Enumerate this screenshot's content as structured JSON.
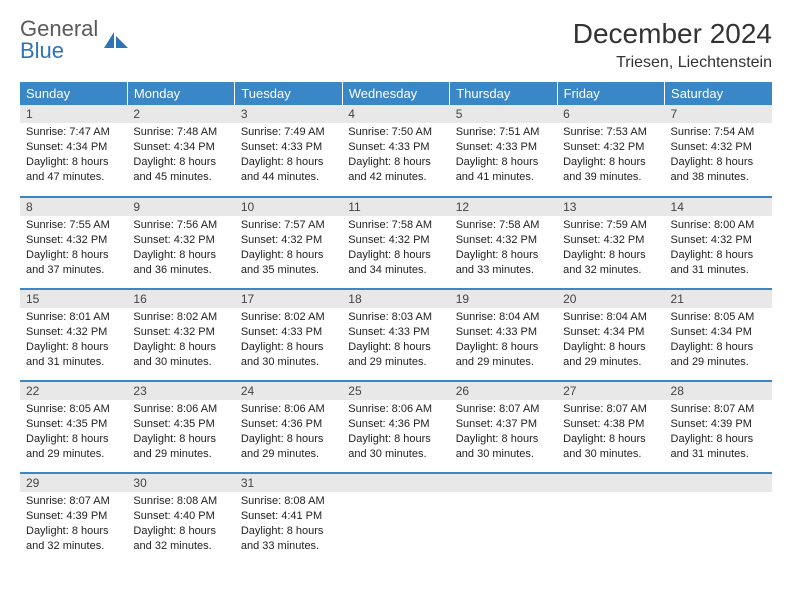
{
  "brand": {
    "part1": "General",
    "part2": "Blue"
  },
  "title": "December 2024",
  "location": "Triesen, Liechtenstein",
  "colors": {
    "header_bg": "#3a87c8",
    "header_text": "#ffffff",
    "daynum_bg": "#e8e8e8",
    "border": "#3a87c8",
    "logo_gray": "#5a5a5a",
    "logo_blue": "#2e74b5"
  },
  "weekdays": [
    "Sunday",
    "Monday",
    "Tuesday",
    "Wednesday",
    "Thursday",
    "Friday",
    "Saturday"
  ],
  "weeks": [
    [
      {
        "n": "1",
        "sr": "7:47 AM",
        "ss": "4:34 PM",
        "dl": "8 hours and 47 minutes."
      },
      {
        "n": "2",
        "sr": "7:48 AM",
        "ss": "4:34 PM",
        "dl": "8 hours and 45 minutes."
      },
      {
        "n": "3",
        "sr": "7:49 AM",
        "ss": "4:33 PM",
        "dl": "8 hours and 44 minutes."
      },
      {
        "n": "4",
        "sr": "7:50 AM",
        "ss": "4:33 PM",
        "dl": "8 hours and 42 minutes."
      },
      {
        "n": "5",
        "sr": "7:51 AM",
        "ss": "4:33 PM",
        "dl": "8 hours and 41 minutes."
      },
      {
        "n": "6",
        "sr": "7:53 AM",
        "ss": "4:32 PM",
        "dl": "8 hours and 39 minutes."
      },
      {
        "n": "7",
        "sr": "7:54 AM",
        "ss": "4:32 PM",
        "dl": "8 hours and 38 minutes."
      }
    ],
    [
      {
        "n": "8",
        "sr": "7:55 AM",
        "ss": "4:32 PM",
        "dl": "8 hours and 37 minutes."
      },
      {
        "n": "9",
        "sr": "7:56 AM",
        "ss": "4:32 PM",
        "dl": "8 hours and 36 minutes."
      },
      {
        "n": "10",
        "sr": "7:57 AM",
        "ss": "4:32 PM",
        "dl": "8 hours and 35 minutes."
      },
      {
        "n": "11",
        "sr": "7:58 AM",
        "ss": "4:32 PM",
        "dl": "8 hours and 34 minutes."
      },
      {
        "n": "12",
        "sr": "7:58 AM",
        "ss": "4:32 PM",
        "dl": "8 hours and 33 minutes."
      },
      {
        "n": "13",
        "sr": "7:59 AM",
        "ss": "4:32 PM",
        "dl": "8 hours and 32 minutes."
      },
      {
        "n": "14",
        "sr": "8:00 AM",
        "ss": "4:32 PM",
        "dl": "8 hours and 31 minutes."
      }
    ],
    [
      {
        "n": "15",
        "sr": "8:01 AM",
        "ss": "4:32 PM",
        "dl": "8 hours and 31 minutes."
      },
      {
        "n": "16",
        "sr": "8:02 AM",
        "ss": "4:32 PM",
        "dl": "8 hours and 30 minutes."
      },
      {
        "n": "17",
        "sr": "8:02 AM",
        "ss": "4:33 PM",
        "dl": "8 hours and 30 minutes."
      },
      {
        "n": "18",
        "sr": "8:03 AM",
        "ss": "4:33 PM",
        "dl": "8 hours and 29 minutes."
      },
      {
        "n": "19",
        "sr": "8:04 AM",
        "ss": "4:33 PM",
        "dl": "8 hours and 29 minutes."
      },
      {
        "n": "20",
        "sr": "8:04 AM",
        "ss": "4:34 PM",
        "dl": "8 hours and 29 minutes."
      },
      {
        "n": "21",
        "sr": "8:05 AM",
        "ss": "4:34 PM",
        "dl": "8 hours and 29 minutes."
      }
    ],
    [
      {
        "n": "22",
        "sr": "8:05 AM",
        "ss": "4:35 PM",
        "dl": "8 hours and 29 minutes."
      },
      {
        "n": "23",
        "sr": "8:06 AM",
        "ss": "4:35 PM",
        "dl": "8 hours and 29 minutes."
      },
      {
        "n": "24",
        "sr": "8:06 AM",
        "ss": "4:36 PM",
        "dl": "8 hours and 29 minutes."
      },
      {
        "n": "25",
        "sr": "8:06 AM",
        "ss": "4:36 PM",
        "dl": "8 hours and 30 minutes."
      },
      {
        "n": "26",
        "sr": "8:07 AM",
        "ss": "4:37 PM",
        "dl": "8 hours and 30 minutes."
      },
      {
        "n": "27",
        "sr": "8:07 AM",
        "ss": "4:38 PM",
        "dl": "8 hours and 30 minutes."
      },
      {
        "n": "28",
        "sr": "8:07 AM",
        "ss": "4:39 PM",
        "dl": "8 hours and 31 minutes."
      }
    ],
    [
      {
        "n": "29",
        "sr": "8:07 AM",
        "ss": "4:39 PM",
        "dl": "8 hours and 32 minutes."
      },
      {
        "n": "30",
        "sr": "8:08 AM",
        "ss": "4:40 PM",
        "dl": "8 hours and 32 minutes."
      },
      {
        "n": "31",
        "sr": "8:08 AM",
        "ss": "4:41 PM",
        "dl": "8 hours and 33 minutes."
      },
      {
        "n": "",
        "sr": "",
        "ss": "",
        "dl": ""
      },
      {
        "n": "",
        "sr": "",
        "ss": "",
        "dl": ""
      },
      {
        "n": "",
        "sr": "",
        "ss": "",
        "dl": ""
      },
      {
        "n": "",
        "sr": "",
        "ss": "",
        "dl": ""
      }
    ]
  ],
  "labels": {
    "sunrise": "Sunrise:",
    "sunset": "Sunset:",
    "daylight": "Daylight:"
  }
}
